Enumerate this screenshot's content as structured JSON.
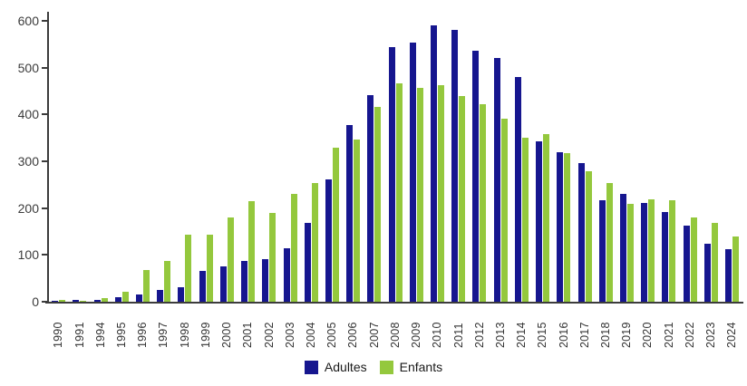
{
  "chart_data": {
    "type": "bar",
    "title": "",
    "xlabel": "",
    "ylabel": "",
    "ylim": [
      0,
      600
    ],
    "yticks": [
      0,
      100,
      200,
      300,
      400,
      500,
      600
    ],
    "grid": false,
    "legend_position": "bottom-center",
    "categories": [
      "1990",
      "1991",
      "1994",
      "1995",
      "1996",
      "1997",
      "1998",
      "1999",
      "2000",
      "2001",
      "2002",
      "2003",
      "2004",
      "2005",
      "2006",
      "2007",
      "2008",
      "2009",
      "2010",
      "2011",
      "2012",
      "2013",
      "2014",
      "2015",
      "2016",
      "2017",
      "2018",
      "2019",
      "2020",
      "2021",
      "2022",
      "2023",
      "2024"
    ],
    "series": [
      {
        "name": "Adultes",
        "color": "#16168F",
        "values": [
          1,
          4,
          4,
          10,
          15,
          25,
          31,
          66,
          76,
          88,
          91,
          115,
          168,
          261,
          378,
          441,
          543,
          554,
          590,
          581,
          537,
          520,
          480,
          342,
          319,
          296,
          216,
          230,
          211,
          192,
          162,
          124,
          113
        ]
      },
      {
        "name": "Enfants",
        "color": "#94C83D",
        "values": [
          4,
          1,
          8,
          22,
          68,
          88,
          143,
          143,
          180,
          215,
          190,
          230,
          253,
          329,
          347,
          416,
          466,
          456,
          462,
          439,
          421,
          390,
          351,
          359,
          318,
          278,
          254,
          209,
          219,
          216,
          180,
          168,
          140
        ]
      }
    ],
    "axis_color": "#3c3c3c"
  },
  "legend": {
    "adultes_label": "Adultes",
    "enfants_label": "Enfants"
  }
}
